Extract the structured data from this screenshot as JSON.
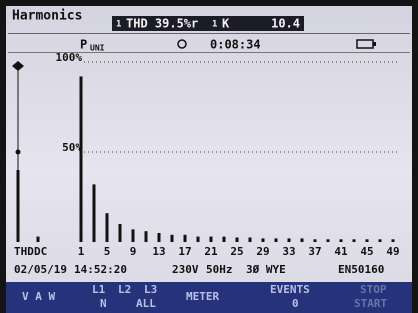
{
  "header": {
    "title": "Harmonics",
    "thd_phase": "1",
    "thd": "THD 39.5%r",
    "k_phase": "1",
    "k_label": "K",
    "k_value": "10.4",
    "mode": "P",
    "mode_sub": "UNI",
    "timer": "0:08:34"
  },
  "chart_data": {
    "type": "bar",
    "color": "#111111",
    "categories": [
      "THD",
      "DC",
      "1",
      null,
      "5",
      null,
      "9",
      null,
      "13",
      null,
      "17",
      null,
      "21",
      null,
      "25",
      null,
      "29",
      null,
      "33",
      null,
      "37",
      null,
      "41",
      null,
      "45",
      null,
      "49"
    ],
    "values": [
      40,
      3,
      92,
      32,
      16,
      10,
      7,
      6,
      5,
      4,
      4,
      3,
      3,
      3,
      2.5,
      2.5,
      2,
      2,
      2,
      2,
      1.5,
      1.5,
      1.5,
      1.5,
      1.5,
      1.5,
      1.5
    ],
    "ylim": [
      0,
      100
    ],
    "yticks": [
      {
        "value": 50,
        "label": "50%"
      },
      {
        "value": 100,
        "label": "100%"
      }
    ],
    "grid": true
  },
  "status": {
    "date": "02/05/19",
    "time": "14:52:20",
    "voltage": "230V",
    "frequency": "50Hz",
    "configuration": "3Ø WYE",
    "standard": "EN50160"
  },
  "softkeys": [
    "V A W",
    "L1",
    "L2",
    "L3",
    "N",
    "ALL",
    "METER",
    "EVENTS",
    "0",
    "STOP",
    "START"
  ]
}
